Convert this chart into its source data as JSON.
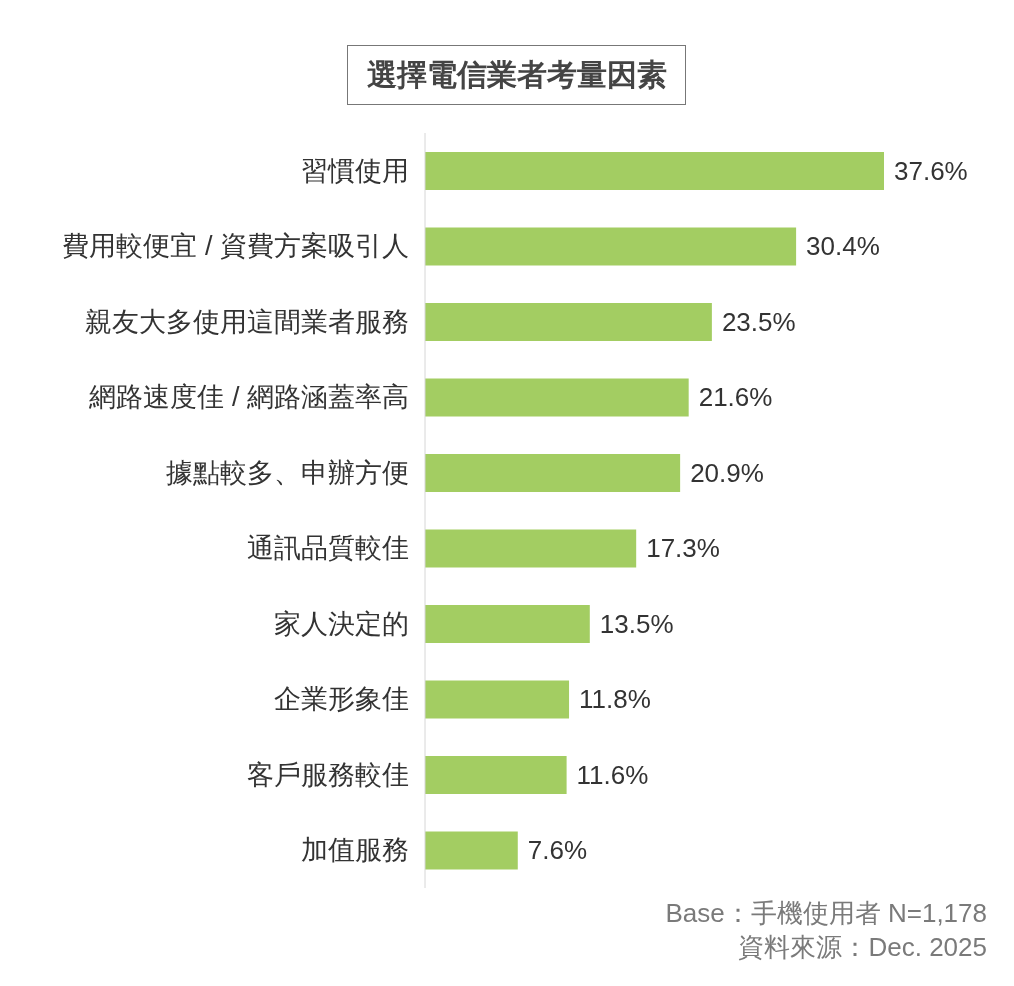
{
  "chart_data": {
    "type": "bar",
    "orientation": "horizontal",
    "title": "選擇電信業者考量因素",
    "categories": [
      "習慣使用",
      "費用較便宜 / 資費方案吸引人",
      "親友大多使用這間業者服務",
      "網路速度佳 / 網路涵蓋率高",
      "據點較多、申辦方便",
      "通訊品質較佳",
      "家人決定的",
      "企業形象佳",
      "客戶服務較佳",
      "加值服務"
    ],
    "values": [
      37.6,
      30.4,
      23.5,
      21.6,
      20.9,
      17.3,
      13.5,
      11.8,
      11.6,
      7.6
    ],
    "value_labels": [
      "37.6%",
      "30.4%",
      "23.5%",
      "21.6%",
      "20.9%",
      "17.3%",
      "13.5%",
      "11.8%",
      "11.6%",
      "7.6%"
    ],
    "color": "#a3cd62",
    "tick_labels": "y",
    "annotations": [
      "Base：手機使用者 N=1,178",
      "資料來源：Dec. 2025"
    ]
  }
}
